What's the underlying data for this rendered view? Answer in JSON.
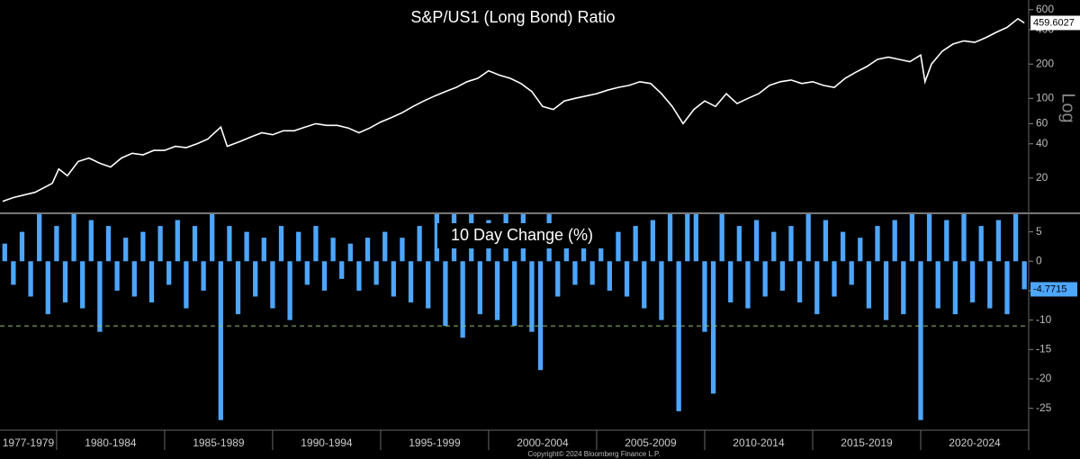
{
  "chart_data": [
    {
      "type": "line",
      "title": "S&P/US1 (Long Bond) Ratio",
      "y_label": "Log",
      "log_scale": true,
      "xlim": [
        1977.38,
        2025
      ],
      "ylim": [
        10,
        730
      ],
      "yticks": [
        20,
        40,
        60,
        100,
        200,
        400,
        600
      ],
      "series": [
        {
          "name": "S&P/US1 (Long Bond) Ratio",
          "color": "#ffffff",
          "x": [
            1977.5,
            1978,
            1979,
            1979.8,
            1980.1,
            1980.5,
            1981,
            1981.5,
            1982,
            1982.5,
            1983,
            1983.5,
            1984,
            1984.5,
            1985,
            1985.5,
            1986,
            1986.5,
            1987,
            1987.6,
            1987.9,
            1988.5,
            1989,
            1989.5,
            1990,
            1990.5,
            1991,
            1991.5,
            1992,
            1992.5,
            1993,
            1993.5,
            1994,
            1994.5,
            1995,
            1995.5,
            1996,
            1996.5,
            1997,
            1997.5,
            1998,
            1998.5,
            1999,
            1999.5,
            2000,
            2000.5,
            2001,
            2001.5,
            2002,
            2002.5,
            2003,
            2003.5,
            2004,
            2004.5,
            2005,
            2005.5,
            2006,
            2006.5,
            2007,
            2007.5,
            2008,
            2008.5,
            2009,
            2009.5,
            2010,
            2010.5,
            2011,
            2011.5,
            2012,
            2012.5,
            2013,
            2013.5,
            2014,
            2014.5,
            2015,
            2015.5,
            2016,
            2016.5,
            2017,
            2017.5,
            2018,
            2018.5,
            2019,
            2019.5,
            2020,
            2020.2,
            2020.5,
            2021,
            2021.5,
            2022,
            2022.5,
            2023,
            2023.5,
            2024,
            2024.5,
            2024.8
          ],
          "values": [
            12.5,
            13.5,
            15,
            18,
            24,
            21,
            28,
            30,
            27,
            25,
            30,
            33,
            32,
            35,
            35,
            38,
            37,
            40,
            44,
            56,
            38,
            42,
            46,
            50,
            48,
            52,
            52,
            56,
            60,
            58,
            58,
            55,
            50,
            55,
            62,
            68,
            75,
            85,
            95,
            105,
            115,
            125,
            140,
            150,
            175,
            160,
            150,
            135,
            115,
            85,
            80,
            95,
            100,
            105,
            110,
            118,
            125,
            130,
            140,
            135,
            110,
            85,
            60,
            80,
            95,
            85,
            110,
            90,
            100,
            110,
            130,
            140,
            145,
            135,
            140,
            130,
            125,
            150,
            170,
            190,
            220,
            230,
            220,
            210,
            240,
            140,
            200,
            260,
            300,
            320,
            310,
            340,
            380,
            420,
            500,
            459.6027
          ]
        }
      ]
    },
    {
      "type": "bar",
      "title": "10 Day Change (%)",
      "xlim": [
        1977.38,
        2025
      ],
      "ylim": [
        -27.5,
        8
      ],
      "yticks": [
        5,
        0,
        -5,
        -10,
        -15,
        -20,
        -25
      ],
      "hline": -11,
      "categories": [
        "1977-1979",
        "1980-1984",
        "1985-1989",
        "1990-1994",
        "1995-1999",
        "2000-2004",
        "2005-2009",
        "2010-2014",
        "2015-2019",
        "2020-2024"
      ],
      "xticks": [
        1980,
        1985,
        1990,
        1995,
        2000,
        2005,
        2010,
        2015,
        2020,
        2025
      ],
      "series": [
        {
          "name": "10 Day Change (%)",
          "color": "#4da6ff",
          "x": [
            1977.6,
            1978.0,
            1978.4,
            1978.8,
            1979.2,
            1979.6,
            1980.0,
            1980.4,
            1980.8,
            1981.2,
            1981.6,
            1982.0,
            1982.4,
            1982.8,
            1983.2,
            1983.6,
            1984.0,
            1984.4,
            1984.8,
            1985.2,
            1985.6,
            1986.0,
            1986.4,
            1986.8,
            1987.2,
            1987.6,
            1988.0,
            1988.4,
            1988.8,
            1989.2,
            1989.6,
            1990.0,
            1990.4,
            1990.8,
            1991.2,
            1991.6,
            1992.0,
            1992.4,
            1992.8,
            1993.2,
            1993.6,
            1994.0,
            1994.4,
            1994.8,
            1995.2,
            1995.6,
            1996.0,
            1996.4,
            1996.8,
            1997.2,
            1997.6,
            1998.0,
            1998.4,
            1998.8,
            1999.2,
            1999.6,
            2000.0,
            2000.4,
            2000.8,
            2001.2,
            2001.6,
            2002.0,
            2002.4,
            2002.8,
            2003.2,
            2003.6,
            2004.0,
            2004.4,
            2004.8,
            2005.2,
            2005.6,
            2006.0,
            2006.4,
            2006.8,
            2007.2,
            2007.6,
            2008.0,
            2008.4,
            2008.8,
            2009.2,
            2009.6,
            2010.0,
            2010.4,
            2010.8,
            2011.2,
            2011.6,
            2012.0,
            2012.4,
            2012.8,
            2013.2,
            2013.6,
            2014.0,
            2014.4,
            2014.8,
            2015.2,
            2015.6,
            2016.0,
            2016.4,
            2016.8,
            2017.2,
            2017.6,
            2018.0,
            2018.4,
            2018.8,
            2019.2,
            2019.6,
            2020.0,
            2020.4,
            2020.8,
            2021.2,
            2021.6,
            2022.0,
            2022.4,
            2022.8,
            2023.2,
            2023.6,
            2024.0,
            2024.4,
            2024.8
          ],
          "values": [
            3,
            -4,
            5,
            -6,
            8,
            -9,
            6,
            -7,
            9,
            -8,
            7,
            -12,
            6,
            -5,
            4,
            -6,
            5,
            -7,
            6,
            -4,
            7,
            -8,
            6,
            -5,
            8,
            -27,
            6,
            -9,
            5,
            -6,
            4,
            -8,
            6,
            -10,
            5,
            -4,
            6,
            -5,
            4,
            -3,
            3,
            -5,
            4,
            -4,
            5,
            -6,
            4,
            -7,
            6,
            -8,
            9,
            -11,
            8,
            -13,
            10,
            -9,
            7,
            -10,
            9,
            -11,
            8,
            -12,
            -18.5,
            9,
            -6,
            5,
            -4,
            3,
            -4,
            4,
            -5,
            5,
            -6,
            6,
            -8,
            7,
            -10,
            9,
            -25.5,
            10,
            8,
            -12,
            -22.5,
            9,
            -7,
            6,
            -8,
            7,
            -6,
            5,
            -5,
            6,
            -7,
            8,
            -9,
            7,
            -6,
            5,
            -4,
            4,
            -8,
            6,
            -10,
            7,
            -9,
            8,
            -27,
            9,
            -8,
            7,
            -9,
            8,
            -7,
            6,
            -8,
            7,
            -9,
            8,
            -4.7715
          ]
        }
      ]
    }
  ],
  "footer": "Copyright© 2024 Bloomberg Finance L.P."
}
